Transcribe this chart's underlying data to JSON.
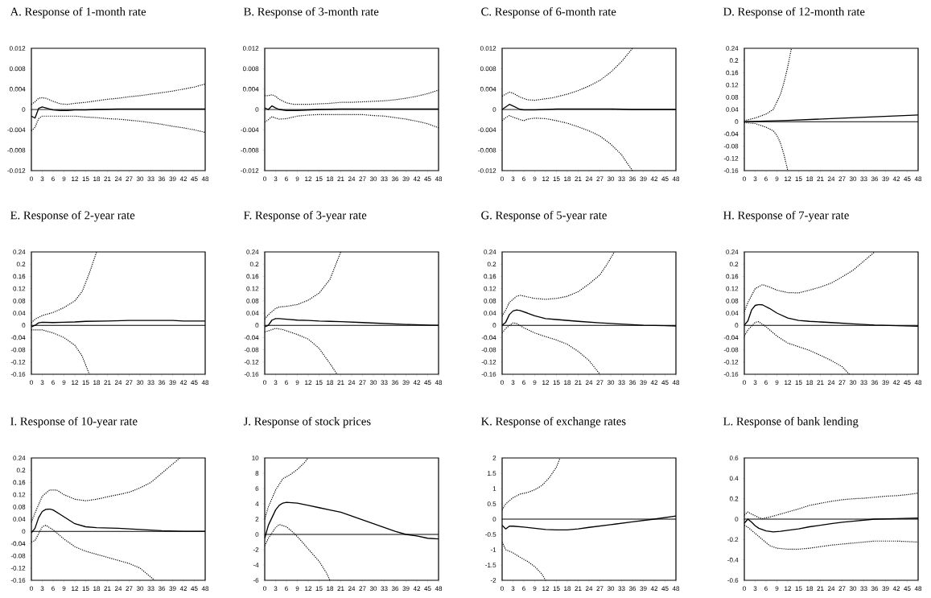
{
  "chart_data": [
    {
      "type": "line",
      "title": "A. Response of 1-month rate",
      "xlim": [
        0,
        48
      ],
      "xticks": [
        0,
        3,
        6,
        9,
        12,
        15,
        18,
        21,
        24,
        27,
        30,
        33,
        36,
        39,
        42,
        45,
        48
      ],
      "ylim": [
        -0.012,
        0.012
      ],
      "yticks": [
        -0.012,
        -0.008,
        -0.004,
        0,
        0.004,
        0.008,
        0.012
      ],
      "ref_lines": [
        {
          "axis": "y",
          "value": 0
        }
      ],
      "series": [
        {
          "color": "#000000",
          "line_style": "solid",
          "x": [
            0,
            1,
            2,
            3,
            4,
            6,
            8,
            10,
            12,
            15,
            18,
            24,
            48
          ],
          "values": [
            -0.0013,
            -0.0017,
            0.0002,
            0.0005,
            0.0003,
            -0.0001,
            -0.0002,
            -0.0002,
            -0.0001,
            -0.0001,
            0,
            0.0001,
            0.0001
          ]
        },
        {
          "color": "#000000",
          "line_style": "dotted",
          "x": [
            0,
            1,
            2,
            3,
            4,
            6,
            8,
            10,
            12,
            15,
            18,
            21,
            24,
            27,
            30,
            33,
            36,
            39,
            42,
            45,
            48
          ],
          "values": [
            0.001,
            0.0015,
            0.0022,
            0.0023,
            0.0022,
            0.0016,
            0.0011,
            0.001,
            0.0012,
            0.0014,
            0.0017,
            0.002,
            0.0022,
            0.0025,
            0.0027,
            0.003,
            0.0033,
            0.0036,
            0.004,
            0.0044,
            0.005
          ]
        },
        {
          "color": "#000000",
          "line_style": "dotted",
          "x": [
            0,
            1,
            2,
            3,
            6,
            9,
            12,
            15,
            18,
            21,
            24,
            27,
            30,
            33,
            36,
            39,
            42,
            45,
            48
          ],
          "values": [
            -0.0042,
            -0.0035,
            -0.0018,
            -0.0013,
            -0.0013,
            -0.0013,
            -0.0013,
            -0.0015,
            -0.0016,
            -0.0018,
            -0.0019,
            -0.0021,
            -0.0023,
            -0.0026,
            -0.0029,
            -0.0033,
            -0.0036,
            -0.004,
            -0.0045
          ]
        }
      ]
    },
    {
      "type": "line",
      "title": "B. Response of 3-month rate",
      "xlim": [
        0,
        48
      ],
      "xticks": [
        0,
        3,
        6,
        9,
        12,
        15,
        18,
        21,
        24,
        27,
        30,
        33,
        36,
        39,
        42,
        45,
        48
      ],
      "ylim": [
        -0.012,
        0.012
      ],
      "yticks": [
        -0.012,
        -0.008,
        -0.004,
        0,
        0.004,
        0.008,
        0.012
      ],
      "ref_lines": [
        {
          "axis": "y",
          "value": 0
        }
      ],
      "series": [
        {
          "color": "#000000",
          "line_style": "solid",
          "x": [
            0,
            1,
            2,
            3,
            4,
            6,
            9,
            12,
            15,
            21,
            48
          ],
          "values": [
            0.0003,
            0,
            0.0007,
            0.0003,
            0,
            -0.0002,
            -0.0002,
            -0.0001,
            0,
            0.0001,
            0.0001
          ]
        },
        {
          "color": "#000000",
          "line_style": "dotted",
          "x": [
            0,
            1,
            2,
            3,
            4,
            6,
            8,
            12,
            15,
            18,
            21,
            24,
            27,
            30,
            33,
            36,
            39,
            42,
            45,
            48
          ],
          "values": [
            0.0027,
            0.0027,
            0.0029,
            0.0026,
            0.002,
            0.0013,
            0.001,
            0.001,
            0.0011,
            0.0012,
            0.0014,
            0.0014,
            0.0015,
            0.0016,
            0.0017,
            0.0019,
            0.0022,
            0.0026,
            0.0031,
            0.0038
          ]
        },
        {
          "color": "#000000",
          "line_style": "dotted",
          "x": [
            0,
            1,
            2,
            3,
            4,
            6,
            9,
            12,
            15,
            21,
            27,
            30,
            33,
            36,
            39,
            42,
            45,
            48
          ],
          "values": [
            -0.0025,
            -0.002,
            -0.0014,
            -0.0017,
            -0.0019,
            -0.0018,
            -0.0013,
            -0.0011,
            -0.001,
            -0.001,
            -0.001,
            -0.0012,
            -0.0013,
            -0.0016,
            -0.0019,
            -0.0023,
            -0.0028,
            -0.0036
          ]
        }
      ]
    },
    {
      "type": "line",
      "title": "C. Response of 6-month rate",
      "xlim": [
        0,
        48
      ],
      "xticks": [
        0,
        3,
        6,
        9,
        12,
        15,
        18,
        21,
        24,
        27,
        30,
        33,
        36,
        39,
        42,
        45,
        48
      ],
      "ylim": [
        -0.012,
        0.012
      ],
      "yticks": [
        -0.012,
        -0.008,
        -0.004,
        0,
        0.004,
        0.008,
        0.012
      ],
      "ref_lines": [
        {
          "axis": "y",
          "value": 0
        }
      ],
      "series": [
        {
          "color": "#000000",
          "line_style": "solid",
          "x": [
            0,
            2,
            3,
            5,
            6,
            9,
            12,
            15,
            30,
            36,
            48
          ],
          "values": [
            0,
            0.001,
            0.0007,
            0,
            -0.0001,
            -0.0001,
            0,
            0.0001,
            0.0001,
            0,
            0
          ]
        },
        {
          "color": "#000000",
          "line_style": "dotted",
          "x": [
            0,
            1,
            2,
            3,
            5,
            7,
            9,
            11,
            14,
            18,
            21,
            24,
            27,
            30,
            33,
            36
          ],
          "values": [
            0.0026,
            0.003,
            0.0034,
            0.0032,
            0.0024,
            0.0019,
            0.0018,
            0.002,
            0.0023,
            0.003,
            0.0037,
            0.0046,
            0.0057,
            0.0073,
            0.0094,
            0.012
          ]
        },
        {
          "color": "#000000",
          "line_style": "dotted",
          "x": [
            0,
            1,
            2,
            3,
            5,
            6,
            7,
            9,
            12,
            15,
            18,
            21,
            24,
            27,
            30,
            33,
            35,
            36
          ],
          "values": [
            -0.0022,
            -0.0016,
            -0.0012,
            -0.0015,
            -0.002,
            -0.0022,
            -0.0019,
            -0.0017,
            -0.0018,
            -0.0022,
            -0.0027,
            -0.0034,
            -0.0042,
            -0.0052,
            -0.0068,
            -0.0089,
            -0.011,
            -0.012
          ]
        }
      ]
    },
    {
      "type": "line",
      "title": "D. Response of 12-month rate",
      "xlim": [
        0,
        48
      ],
      "xticks": [
        0,
        3,
        6,
        9,
        12,
        15,
        18,
        21,
        24,
        27,
        30,
        33,
        36,
        39,
        42,
        45,
        48
      ],
      "ylim": [
        -0.16,
        0.24
      ],
      "yticks": [
        -0.16,
        -0.12,
        -0.08,
        -0.04,
        0,
        0.04,
        0.08,
        0.12,
        0.16,
        0.2,
        0.24
      ],
      "ref_lines": [
        {
          "axis": "y",
          "value": 0
        }
      ],
      "series": [
        {
          "color": "#000000",
          "line_style": "solid",
          "x": [
            0,
            12,
            24,
            36,
            48
          ],
          "values": [
            0,
            0.004,
            0.01,
            0.016,
            0.022
          ]
        },
        {
          "color": "#000000",
          "line_style": "dotted",
          "x": [
            0,
            3,
            6,
            8,
            10,
            11,
            12,
            13
          ],
          "values": [
            0.003,
            0.012,
            0.025,
            0.04,
            0.09,
            0.13,
            0.18,
            0.24
          ]
        },
        {
          "color": "#000000",
          "line_style": "dotted",
          "x": [
            0,
            3,
            6,
            8,
            9,
            10,
            11,
            12
          ],
          "values": [
            -0.003,
            -0.006,
            -0.018,
            -0.03,
            -0.045,
            -0.07,
            -0.11,
            -0.16
          ]
        }
      ]
    },
    {
      "type": "line",
      "title": "E. Response of 2-year rate",
      "xlim": [
        0,
        48
      ],
      "xticks": [
        0,
        3,
        6,
        9,
        12,
        15,
        18,
        21,
        24,
        27,
        30,
        33,
        36,
        39,
        42,
        45,
        48
      ],
      "ylim": [
        -0.16,
        0.24
      ],
      "yticks": [
        -0.16,
        -0.12,
        -0.08,
        -0.04,
        0,
        0.04,
        0.08,
        0.12,
        0.16,
        0.2,
        0.24
      ],
      "ref_lines": [
        {
          "axis": "y",
          "value": 0
        }
      ],
      "series": [
        {
          "color": "#000000",
          "line_style": "solid",
          "x": [
            0,
            1,
            2,
            3,
            6,
            9,
            12,
            15,
            21,
            27,
            33,
            39,
            42,
            48
          ],
          "values": [
            -0.005,
            0,
            0.008,
            0.01,
            0.009,
            0.01,
            0.011,
            0.013,
            0.014,
            0.016,
            0.016,
            0.016,
            0.014,
            0.014
          ]
        },
        {
          "color": "#000000",
          "line_style": "dotted",
          "x": [
            0,
            1,
            3,
            6,
            9,
            12,
            14,
            16,
            18
          ],
          "values": [
            0.008,
            0.02,
            0.032,
            0.042,
            0.058,
            0.08,
            0.11,
            0.17,
            0.24
          ]
        },
        {
          "color": "#000000",
          "line_style": "dotted",
          "x": [
            0,
            3,
            6,
            9,
            12,
            14,
            16
          ],
          "values": [
            -0.015,
            -0.015,
            -0.025,
            -0.04,
            -0.065,
            -0.1,
            -0.16
          ]
        }
      ]
    },
    {
      "type": "line",
      "title": "F. Response of 3-year rate",
      "xlim": [
        0,
        48
      ],
      "xticks": [
        0,
        3,
        6,
        9,
        12,
        15,
        18,
        21,
        24,
        27,
        30,
        33,
        36,
        39,
        42,
        45,
        48
      ],
      "ylim": [
        -0.16,
        0.24
      ],
      "yticks": [
        -0.16,
        -0.12,
        -0.08,
        -0.04,
        0,
        0.04,
        0.08,
        0.12,
        0.16,
        0.2,
        0.24
      ],
      "ref_lines": [
        {
          "axis": "y",
          "value": 0
        }
      ],
      "series": [
        {
          "color": "#000000",
          "line_style": "solid",
          "x": [
            0,
            1,
            2,
            3,
            4,
            6,
            9,
            12,
            15,
            18,
            21,
            27,
            33,
            39,
            45,
            48
          ],
          "values": [
            -0.005,
            0,
            0.017,
            0.022,
            0.022,
            0.02,
            0.017,
            0.016,
            0.014,
            0.013,
            0.012,
            0.009,
            0.006,
            0.003,
            0.001,
            0
          ]
        },
        {
          "color": "#000000",
          "line_style": "dotted",
          "x": [
            0,
            1,
            3,
            4,
            6,
            9,
            12,
            15,
            18,
            21
          ],
          "values": [
            0.02,
            0.035,
            0.055,
            0.06,
            0.062,
            0.068,
            0.082,
            0.105,
            0.15,
            0.24
          ]
        },
        {
          "color": "#000000",
          "line_style": "dotted",
          "x": [
            0,
            1,
            3,
            5,
            7,
            9,
            12,
            15,
            18,
            20
          ],
          "values": [
            -0.022,
            -0.018,
            -0.01,
            -0.014,
            -0.022,
            -0.03,
            -0.045,
            -0.075,
            -0.125,
            -0.16
          ]
        }
      ]
    },
    {
      "type": "line",
      "title": "G. Response of 5-year rate",
      "xlim": [
        0,
        48
      ],
      "xticks": [
        0,
        3,
        6,
        9,
        12,
        15,
        18,
        21,
        24,
        27,
        30,
        33,
        36,
        39,
        42,
        45,
        48
      ],
      "ylim": [
        -0.16,
        0.24
      ],
      "yticks": [
        -0.16,
        -0.12,
        -0.08,
        -0.04,
        0,
        0.04,
        0.08,
        0.12,
        0.16,
        0.2,
        0.24
      ],
      "ref_lines": [
        {
          "axis": "y",
          "value": 0
        }
      ],
      "series": [
        {
          "color": "#000000",
          "line_style": "solid",
          "x": [
            0,
            1,
            2,
            3,
            4,
            5,
            7,
            9,
            12,
            15,
            18,
            21,
            27,
            33,
            39,
            45,
            48
          ],
          "values": [
            0,
            0.01,
            0.035,
            0.047,
            0.05,
            0.048,
            0.04,
            0.031,
            0.022,
            0.019,
            0.016,
            0.013,
            0.008,
            0.004,
            0,
            -0.001,
            -0.002
          ]
        },
        {
          "color": "#000000",
          "line_style": "dotted",
          "x": [
            0,
            1,
            2,
            4,
            5,
            7,
            9,
            12,
            15,
            18,
            21,
            24,
            27,
            29,
            31
          ],
          "values": [
            0.03,
            0.05,
            0.075,
            0.095,
            0.098,
            0.093,
            0.088,
            0.085,
            0.088,
            0.095,
            0.11,
            0.135,
            0.165,
            0.2,
            0.24
          ]
        },
        {
          "color": "#000000",
          "line_style": "dotted",
          "x": [
            0,
            1,
            3,
            4,
            6,
            9,
            12,
            15,
            18,
            21,
            24,
            27
          ],
          "values": [
            -0.025,
            -0.01,
            0.008,
            0.006,
            -0.008,
            -0.025,
            -0.037,
            -0.048,
            -0.062,
            -0.085,
            -0.115,
            -0.16
          ]
        }
      ]
    },
    {
      "type": "line",
      "title": "H. Response of 7-year rate",
      "xlim": [
        0,
        48
      ],
      "xticks": [
        0,
        3,
        6,
        9,
        12,
        15,
        18,
        21,
        24,
        27,
        30,
        33,
        36,
        39,
        42,
        45,
        48
      ],
      "ylim": [
        -0.16,
        0.24
      ],
      "yticks": [
        -0.16,
        -0.12,
        -0.08,
        -0.04,
        0,
        0.04,
        0.08,
        0.12,
        0.16,
        0.2,
        0.24
      ],
      "ref_lines": [
        {
          "axis": "y",
          "value": 0
        }
      ],
      "series": [
        {
          "color": "#000000",
          "line_style": "solid",
          "x": [
            0,
            1,
            2,
            3,
            4,
            5,
            7,
            9,
            12,
            15,
            18,
            21,
            24,
            30,
            36,
            42,
            48
          ],
          "values": [
            0,
            0.015,
            0.05,
            0.065,
            0.068,
            0.067,
            0.055,
            0.04,
            0.024,
            0.016,
            0.013,
            0.011,
            0.009,
            0.005,
            0.001,
            -0.001,
            -0.003
          ]
        },
        {
          "color": "#000000",
          "line_style": "dotted",
          "x": [
            0,
            1,
            3,
            5,
            7,
            9,
            12,
            15,
            18,
            21,
            24,
            27,
            30,
            33,
            36
          ],
          "values": [
            0.045,
            0.075,
            0.12,
            0.133,
            0.125,
            0.115,
            0.107,
            0.106,
            0.115,
            0.125,
            0.138,
            0.158,
            0.18,
            0.21,
            0.24
          ]
        },
        {
          "color": "#000000",
          "line_style": "dotted",
          "x": [
            0,
            1,
            3,
            4,
            6,
            9,
            12,
            15,
            18,
            21,
            24,
            27,
            29
          ],
          "values": [
            -0.035,
            -0.015,
            0.01,
            0.012,
            -0.005,
            -0.035,
            -0.058,
            -0.07,
            -0.082,
            -0.098,
            -0.115,
            -0.135,
            -0.16
          ]
        }
      ]
    },
    {
      "type": "line",
      "title": "I. Response of 10-year rate",
      "xlim": [
        0,
        48
      ],
      "xticks": [
        0,
        3,
        6,
        9,
        12,
        15,
        18,
        21,
        24,
        27,
        30,
        33,
        36,
        39,
        42,
        45,
        48
      ],
      "ylim": [
        -0.16,
        0.24
      ],
      "yticks": [
        -0.16,
        -0.12,
        -0.08,
        -0.04,
        0,
        0.04,
        0.08,
        0.12,
        0.16,
        0.2,
        0.24
      ],
      "ref_lines": [
        {
          "axis": "y",
          "value": 0
        }
      ],
      "series": [
        {
          "color": "#000000",
          "line_style": "solid",
          "x": [
            0,
            1,
            2,
            3,
            4,
            5,
            6,
            8,
            10,
            12,
            15,
            18,
            24,
            30,
            36,
            42,
            48
          ],
          "values": [
            -0.005,
            0.01,
            0.045,
            0.065,
            0.072,
            0.073,
            0.07,
            0.055,
            0.04,
            0.025,
            0.015,
            0.012,
            0.01,
            0.006,
            0.002,
            0,
            0
          ]
        },
        {
          "color": "#000000",
          "line_style": "dotted",
          "x": [
            0,
            1,
            3,
            5,
            7,
            9,
            12,
            15,
            18,
            21,
            24,
            27,
            30,
            33,
            36,
            39,
            41
          ],
          "values": [
            0.03,
            0.06,
            0.115,
            0.135,
            0.135,
            0.12,
            0.105,
            0.1,
            0.105,
            0.113,
            0.12,
            0.128,
            0.142,
            0.16,
            0.19,
            0.22,
            0.24
          ]
        },
        {
          "color": "#000000",
          "line_style": "dotted",
          "x": [
            0,
            1,
            3,
            4,
            6,
            9,
            12,
            15,
            18,
            21,
            24,
            27,
            30,
            33,
            34
          ],
          "values": [
            -0.035,
            -0.03,
            0.015,
            0.02,
            0.005,
            -0.025,
            -0.05,
            -0.065,
            -0.075,
            -0.085,
            -0.095,
            -0.105,
            -0.12,
            -0.15,
            -0.16
          ]
        }
      ]
    },
    {
      "type": "line",
      "title": "J. Response of stock prices",
      "xlim": [
        0,
        48
      ],
      "xticks": [
        0,
        3,
        6,
        9,
        12,
        15,
        18,
        21,
        24,
        27,
        30,
        33,
        36,
        39,
        42,
        45,
        48
      ],
      "ylim": [
        -6,
        10
      ],
      "yticks": [
        -6,
        -4,
        -2,
        0,
        2,
        4,
        6,
        8,
        10
      ],
      "ref_lines": [
        {
          "axis": "y",
          "value": 0
        }
      ],
      "series": [
        {
          "color": "#000000",
          "line_style": "solid",
          "x": [
            0,
            1,
            2,
            3,
            4,
            5,
            6,
            9,
            12,
            15,
            18,
            21,
            24,
            27,
            30,
            33,
            36,
            39,
            42,
            45,
            48
          ],
          "values": [
            -0.5,
            1.2,
            2.2,
            3.2,
            3.8,
            4.1,
            4.2,
            4.1,
            3.8,
            3.5,
            3.2,
            2.9,
            2.4,
            1.9,
            1.4,
            0.9,
            0.4,
            0,
            -0.2,
            -0.5,
            -0.6
          ]
        },
        {
          "color": "#000000",
          "line_style": "dotted",
          "x": [
            0,
            1,
            3,
            5,
            7,
            9,
            11,
            12
          ],
          "values": [
            2,
            3.6,
            5.8,
            7.3,
            7.8,
            8.5,
            9.4,
            10
          ]
        },
        {
          "color": "#000000",
          "line_style": "dotted",
          "x": [
            0,
            1,
            3,
            4,
            6,
            8,
            10,
            12,
            15,
            17,
            18
          ],
          "values": [
            -1.5,
            -0.5,
            0.9,
            1.3,
            1,
            0.2,
            -0.8,
            -1.9,
            -3.5,
            -5,
            -6
          ]
        }
      ]
    },
    {
      "type": "line",
      "title": "K. Response of exchange rates",
      "xlim": [
        0,
        48
      ],
      "xticks": [
        0,
        3,
        6,
        9,
        12,
        15,
        18,
        21,
        24,
        27,
        30,
        33,
        36,
        39,
        42,
        45,
        48
      ],
      "ylim": [
        -2,
        2
      ],
      "yticks": [
        -2,
        -1.5,
        -1,
        -0.5,
        0,
        0.5,
        1,
        1.5,
        2
      ],
      "ref_lines": [
        {
          "axis": "y",
          "value": 0
        }
      ],
      "series": [
        {
          "color": "#000000",
          "line_style": "solid",
          "x": [
            0,
            1,
            2,
            3,
            6,
            9,
            12,
            15,
            18,
            21,
            24,
            30,
            36,
            42,
            48
          ],
          "values": [
            -0.2,
            -0.32,
            -0.23,
            -0.23,
            -0.26,
            -0.3,
            -0.34,
            -0.35,
            -0.35,
            -0.32,
            -0.27,
            -0.18,
            -0.09,
            0,
            0.1
          ]
        },
        {
          "color": "#000000",
          "line_style": "dotted",
          "x": [
            0,
            1,
            3,
            5,
            7,
            9,
            11,
            13,
            15,
            16
          ],
          "values": [
            0.3,
            0.5,
            0.7,
            0.82,
            0.87,
            0.96,
            1.1,
            1.35,
            1.7,
            2
          ]
        },
        {
          "color": "#000000",
          "line_style": "dotted",
          "x": [
            0,
            1,
            3,
            5,
            7,
            9,
            11,
            12
          ],
          "values": [
            -0.75,
            -1,
            -1.1,
            -1.25,
            -1.38,
            -1.55,
            -1.8,
            -2
          ]
        }
      ]
    },
    {
      "type": "line",
      "title": "L. Response of bank lending",
      "xlim": [
        0,
        48
      ],
      "xticks": [
        0,
        3,
        6,
        9,
        12,
        15,
        18,
        21,
        24,
        27,
        30,
        33,
        36,
        39,
        42,
        45,
        48
      ],
      "ylim": [
        -0.6,
        0.6
      ],
      "yticks": [
        -0.6,
        -0.4,
        -0.2,
        0,
        0.2,
        0.4,
        0.6
      ],
      "ref_lines": [
        {
          "axis": "y",
          "value": 0
        }
      ],
      "series": [
        {
          "color": "#000000",
          "line_style": "solid",
          "x": [
            0,
            1,
            2,
            3,
            4,
            6,
            8,
            10,
            12,
            15,
            18,
            21,
            24,
            27,
            30,
            33,
            36,
            42,
            48
          ],
          "values": [
            -0.04,
            0,
            -0.03,
            -0.065,
            -0.09,
            -0.115,
            -0.125,
            -0.12,
            -0.11,
            -0.095,
            -0.075,
            -0.06,
            -0.045,
            -0.03,
            -0.02,
            -0.01,
            0,
            0.005,
            0.01
          ]
        },
        {
          "color": "#000000",
          "line_style": "dotted",
          "x": [
            0,
            1,
            2,
            4,
            5,
            7,
            9,
            12,
            15,
            18,
            21,
            24,
            27,
            30,
            33,
            36,
            39,
            42,
            45,
            48
          ],
          "values": [
            0.04,
            0.07,
            0.05,
            0.015,
            0.005,
            0.02,
            0.04,
            0.07,
            0.1,
            0.135,
            0.155,
            0.175,
            0.19,
            0.2,
            0.205,
            0.215,
            0.225,
            0.23,
            0.24,
            0.255
          ]
        },
        {
          "color": "#000000",
          "line_style": "dotted",
          "x": [
            0,
            1,
            3,
            5,
            7,
            9,
            12,
            15,
            18,
            21,
            24,
            27,
            30,
            33,
            36,
            42,
            48
          ],
          "values": [
            -0.06,
            -0.08,
            -0.14,
            -0.2,
            -0.26,
            -0.285,
            -0.295,
            -0.295,
            -0.285,
            -0.27,
            -0.255,
            -0.245,
            -0.235,
            -0.225,
            -0.215,
            -0.215,
            -0.225
          ]
        }
      ]
    }
  ]
}
